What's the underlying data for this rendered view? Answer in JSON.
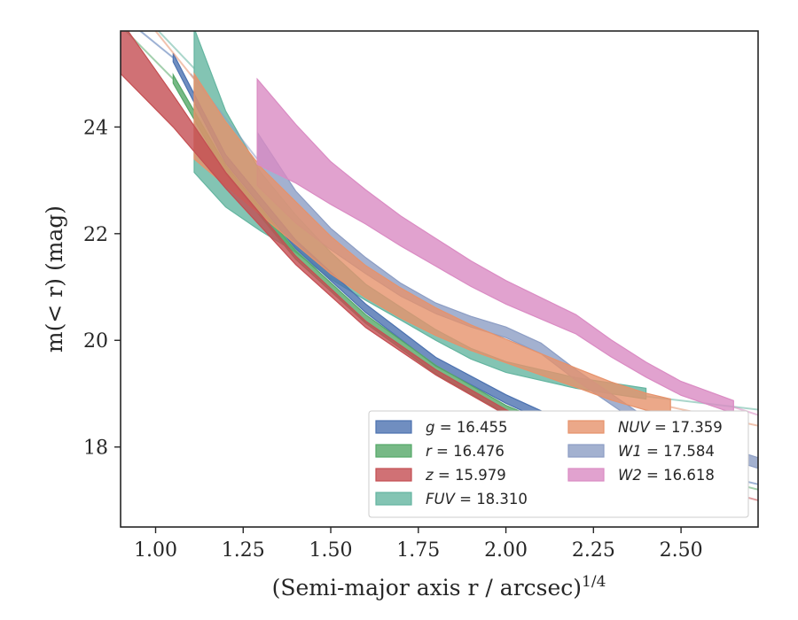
{
  "chart_data": {
    "type": "line",
    "title": "",
    "xlabel": "(Semi-major axis r / arcsec)",
    "xlabel_sup": "1/4",
    "ylabel": "m(< r) (mag)",
    "xlim": [
      0.9,
      2.72
    ],
    "ylim": [
      25.8,
      16.5
    ],
    "y_inverted": true,
    "x_ticks": [
      "1.00",
      "1.25",
      "1.50",
      "1.75",
      "2.00",
      "2.25",
      "2.50"
    ],
    "y_ticks": [
      "18",
      "20",
      "22",
      "24"
    ],
    "grid": false,
    "legend": "lower-right",
    "series": [
      {
        "name": "g = 16.455",
        "var": "g",
        "value": "16.455",
        "color": "#4c72b0",
        "x": [
          1.05,
          1.2,
          1.4,
          1.6,
          1.8,
          2.0,
          2.2,
          2.4,
          2.56
        ],
        "y": [
          25.3,
          23.4,
          21.8,
          20.6,
          19.6,
          18.9,
          18.3,
          17.85,
          17.55
        ],
        "band": 0.08,
        "ext_before": {
          "x": [
            0.9,
            1.05
          ],
          "y": [
            26.1,
            25.3
          ]
        },
        "ext_after": {
          "x": [
            2.56,
            2.72
          ],
          "y": [
            17.55,
            17.3
          ]
        }
      },
      {
        "name": "r = 16.476",
        "var": "r",
        "value": "16.476",
        "color": "#55a868",
        "x": [
          1.05,
          1.2,
          1.4,
          1.6,
          1.8,
          2.0,
          2.2,
          2.4,
          2.48
        ],
        "y": [
          24.9,
          23.2,
          21.6,
          20.4,
          19.45,
          18.7,
          18.15,
          17.75,
          17.6
        ],
        "band": 0.08,
        "ext_before": {
          "x": [
            0.9,
            1.05
          ],
          "y": [
            25.9,
            24.9
          ]
        },
        "ext_after": {
          "x": [
            2.48,
            2.72
          ],
          "y": [
            17.6,
            17.2
          ]
        }
      },
      {
        "name": "z = 15.979",
        "var": "z",
        "value": "15.979",
        "color": "#c44e52",
        "x": [
          0.9,
          1.05,
          1.2,
          1.4,
          1.6,
          1.8,
          2.0,
          2.2,
          2.4,
          2.52
        ],
        "y": [
          25.5,
          24.3,
          23.0,
          21.5,
          20.3,
          19.4,
          18.65,
          18.05,
          17.6,
          17.35
        ],
        "band": [
          0.5,
          0.3,
          0.15,
          0.08,
          0.06,
          0.05,
          0.05,
          0.05,
          0.05,
          0.05
        ],
        "ext_after": {
          "x": [
            2.52,
            2.72
          ],
          "y": [
            17.35,
            17.0
          ]
        }
      },
      {
        "name": "FUV = 18.310",
        "var": "FUV",
        "value": "18.310",
        "color": "#64b5a0",
        "x": [
          1.11,
          1.2,
          1.3,
          1.4,
          1.5,
          1.6,
          1.7,
          1.8,
          1.9,
          2.0,
          2.1,
          2.2,
          2.3,
          2.4
        ],
        "y": [
          24.5,
          23.4,
          22.6,
          22.0,
          21.4,
          20.9,
          20.5,
          20.1,
          19.75,
          19.5,
          19.35,
          19.2,
          19.1,
          19.0
        ],
        "band": [
          1.35,
          0.9,
          0.55,
          0.35,
          0.25,
          0.15,
          0.12,
          0.1,
          0.1,
          0.1,
          0.1,
          0.1,
          0.1,
          0.1
        ],
        "ext_before": {
          "x": [
            0.95,
            1.11
          ],
          "y": [
            26.2,
            25.1
          ]
        },
        "ext_after": {
          "x": [
            2.4,
            2.72
          ],
          "y": [
            18.95,
            18.7
          ]
        }
      },
      {
        "name": "NUV = 17.359",
        "var": "NUV",
        "value": "17.359",
        "color": "#e6926b",
        "x": [
          1.11,
          1.2,
          1.3,
          1.4,
          1.5,
          1.6,
          1.7,
          1.8,
          1.9,
          2.0,
          2.1,
          2.2,
          2.3,
          2.4,
          2.47
        ],
        "y": [
          24.2,
          23.5,
          22.8,
          22.2,
          21.6,
          21.1,
          20.7,
          20.35,
          20.05,
          19.8,
          19.55,
          19.3,
          19.05,
          18.85,
          18.75
        ],
        "band": [
          0.8,
          0.6,
          0.45,
          0.4,
          0.35,
          0.3,
          0.28,
          0.26,
          0.24,
          0.22,
          0.2,
          0.18,
          0.17,
          0.16,
          0.15
        ],
        "ext_before": {
          "x": [
            1.0,
            1.11
          ],
          "y": [
            25.8,
            24.9
          ]
        },
        "ext_after": {
          "x": [
            2.47,
            2.72
          ],
          "y": [
            18.75,
            18.4
          ]
        }
      },
      {
        "name": "W1 = 17.584",
        "var": "W1",
        "value": "17.584",
        "color": "#8c9dc4",
        "x": [
          1.29,
          1.4,
          1.5,
          1.6,
          1.7,
          1.8,
          1.9,
          2.0,
          2.1,
          2.2,
          2.3,
          2.4,
          2.5,
          2.6,
          2.72
        ],
        "y": [
          23.4,
          22.5,
          21.9,
          21.4,
          20.95,
          20.6,
          20.35,
          20.15,
          19.85,
          19.35,
          18.9,
          18.45,
          18.15,
          17.95,
          17.7
        ],
        "band": [
          0.5,
          0.3,
          0.2,
          0.15,
          0.12,
          0.1,
          0.1,
          0.1,
          0.1,
          0.1,
          0.1,
          0.1,
          0.1,
          0.1,
          0.1
        ],
        "ext_before": {
          "x": [
            1.1,
            1.29
          ],
          "y": [
            25.0,
            23.4
          ]
        }
      },
      {
        "name": "W2 = 16.618",
        "var": "W2",
        "value": "16.618",
        "color": "#da8bc3",
        "x": [
          1.29,
          1.4,
          1.5,
          1.6,
          1.7,
          1.8,
          1.9,
          2.0,
          2.1,
          2.2,
          2.3,
          2.4,
          2.5,
          2.65
        ],
        "y": [
          24.1,
          23.5,
          22.95,
          22.5,
          22.05,
          21.65,
          21.25,
          20.9,
          20.6,
          20.3,
          19.85,
          19.45,
          19.1,
          18.75
        ],
        "band": [
          0.8,
          0.55,
          0.4,
          0.32,
          0.28,
          0.26,
          0.24,
          0.22,
          0.2,
          0.18,
          0.16,
          0.14,
          0.13,
          0.12
        ],
        "ext_after": {
          "x": [
            2.65,
            2.72
          ],
          "y": [
            18.75,
            18.6
          ]
        }
      }
    ]
  }
}
